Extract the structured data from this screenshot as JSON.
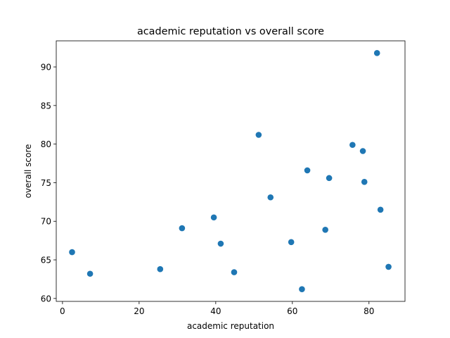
{
  "chart_data": {
    "type": "scatter",
    "title": "academic reputation vs overall score",
    "xlabel": "academic reputation",
    "ylabel": "overall score",
    "xlim": [
      -1.63,
      89.4
    ],
    "ylim": [
      59.62,
      93.38
    ],
    "xticks": [
      0,
      20,
      40,
      60,
      80
    ],
    "yticks": [
      60,
      65,
      70,
      75,
      80,
      85,
      90
    ],
    "grid": false,
    "color": "#1f77b4",
    "points": [
      {
        "x": 2.5,
        "y": 66.0
      },
      {
        "x": 7.2,
        "y": 63.2
      },
      {
        "x": 25.5,
        "y": 63.8
      },
      {
        "x": 31.2,
        "y": 69.1
      },
      {
        "x": 39.5,
        "y": 70.5
      },
      {
        "x": 41.3,
        "y": 67.1
      },
      {
        "x": 44.8,
        "y": 63.4
      },
      {
        "x": 51.2,
        "y": 81.2
      },
      {
        "x": 54.3,
        "y": 73.1
      },
      {
        "x": 59.7,
        "y": 67.3
      },
      {
        "x": 62.5,
        "y": 61.2
      },
      {
        "x": 63.9,
        "y": 76.6
      },
      {
        "x": 68.6,
        "y": 68.9
      },
      {
        "x": 69.6,
        "y": 75.6
      },
      {
        "x": 75.7,
        "y": 79.9
      },
      {
        "x": 78.4,
        "y": 79.1
      },
      {
        "x": 78.8,
        "y": 75.1
      },
      {
        "x": 82.1,
        "y": 91.8
      },
      {
        "x": 83.0,
        "y": 71.5
      },
      {
        "x": 85.1,
        "y": 64.1
      }
    ]
  }
}
